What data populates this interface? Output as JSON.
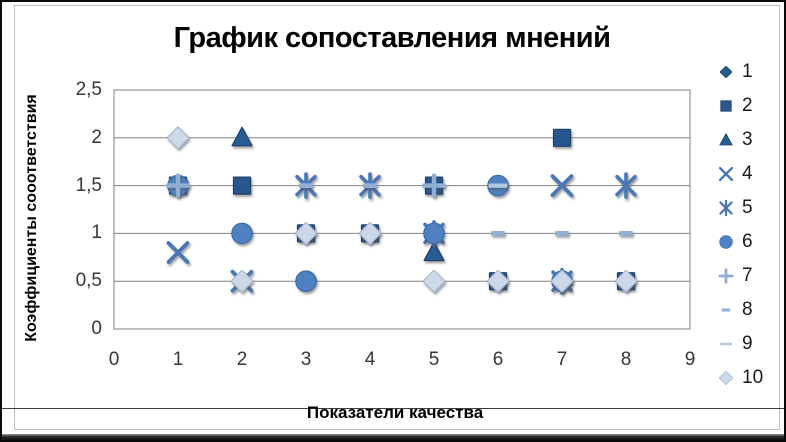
{
  "title": "График сопоставления мнений",
  "axes": {
    "x_title": "Показатели качества",
    "y_title": "Коэффициенты сооответствия"
  },
  "colors": {
    "grid": "#808080",
    "plot_border": "#808080",
    "tick_text": "#373737",
    "title_text": "#000000",
    "shadow": "#4a4a4a"
  },
  "chart_data": {
    "type": "scatter",
    "title": "График сопоставления мнений",
    "xlabel": "Показатели качества",
    "ylabel": "Коэффициенты сооответствия",
    "xlim": [
      0,
      9
    ],
    "ylim": [
      0,
      2.5
    ],
    "grid": true,
    "legend_position": "right",
    "x_tick_labels": [
      "0",
      "1",
      "2",
      "3",
      "4",
      "5",
      "6",
      "7",
      "8",
      "9"
    ],
    "x_tick_values": [
      0,
      1,
      2,
      3,
      4,
      5,
      6,
      7,
      8,
      9
    ],
    "y_tick_labels": [
      "0",
      "0,5",
      "1",
      "1,5",
      "2",
      "2,5"
    ],
    "y_tick_values": [
      0,
      0.5,
      1,
      1.5,
      2,
      2.5
    ],
    "series": [
      {
        "name": "1",
        "marker": "diamond",
        "color": "#27588f",
        "edge": "#1a4068",
        "points": []
      },
      {
        "name": "2",
        "marker": "square",
        "color": "#27588f",
        "edge": "#1a4068",
        "points": [
          [
            1,
            1.5
          ],
          [
            2,
            1.5
          ],
          [
            3,
            1
          ],
          [
            4,
            1
          ],
          [
            5,
            1.5
          ],
          [
            6,
            0.5
          ],
          [
            7,
            2
          ],
          [
            8,
            0.5
          ]
        ]
      },
      {
        "name": "3",
        "marker": "triangle",
        "color": "#2a5c94",
        "edge": "#1a4068",
        "points": [
          [
            2,
            2
          ],
          [
            5,
            0.8
          ]
        ]
      },
      {
        "name": "4",
        "marker": "x",
        "color": "#4978b4",
        "edge": "#4978b4",
        "points": [
          [
            1,
            0.8
          ],
          [
            2,
            0.5
          ],
          [
            7,
            1.5
          ]
        ]
      },
      {
        "name": "5",
        "marker": "asterisk",
        "color": "#4978b4",
        "edge": "#4978b4",
        "points": [
          [
            3,
            1.5
          ],
          [
            4,
            1.5
          ],
          [
            5,
            1
          ],
          [
            7,
            0.5
          ],
          [
            8,
            1.5
          ]
        ]
      },
      {
        "name": "6",
        "marker": "circle",
        "color": "#5081c1",
        "edge": "#3b6bab",
        "points": [
          [
            1,
            1.5
          ],
          [
            2,
            1
          ],
          [
            3,
            0.5
          ],
          [
            5,
            1
          ],
          [
            6,
            1.5
          ],
          [
            7,
            0.5
          ]
        ]
      },
      {
        "name": "7",
        "marker": "plus",
        "color": "#92aed3",
        "edge": "#92aed3",
        "points": [
          [
            1,
            1.5
          ],
          [
            5,
            1.5
          ]
        ]
      },
      {
        "name": "8",
        "marker": "dash-short",
        "color": "#92aed3",
        "edge": "#92aed3",
        "points": [
          [
            3,
            1.5
          ],
          [
            4,
            1.5
          ],
          [
            6,
            1
          ],
          [
            7,
            1
          ],
          [
            8,
            1
          ]
        ]
      },
      {
        "name": "9",
        "marker": "dash-long",
        "color": "#b5c7e1",
        "edge": "#b5c7e1",
        "points": [
          [
            6,
            1.5
          ]
        ]
      },
      {
        "name": "10",
        "marker": "diamond-light",
        "color": "#ccd7e8",
        "edge": "#a8b8d0",
        "points": [
          [
            1,
            2
          ],
          [
            2,
            0.5
          ],
          [
            3,
            1
          ],
          [
            4,
            1
          ],
          [
            5,
            0.5
          ],
          [
            6,
            0.5
          ],
          [
            7,
            0.5
          ],
          [
            8,
            0.5
          ]
        ]
      }
    ]
  }
}
